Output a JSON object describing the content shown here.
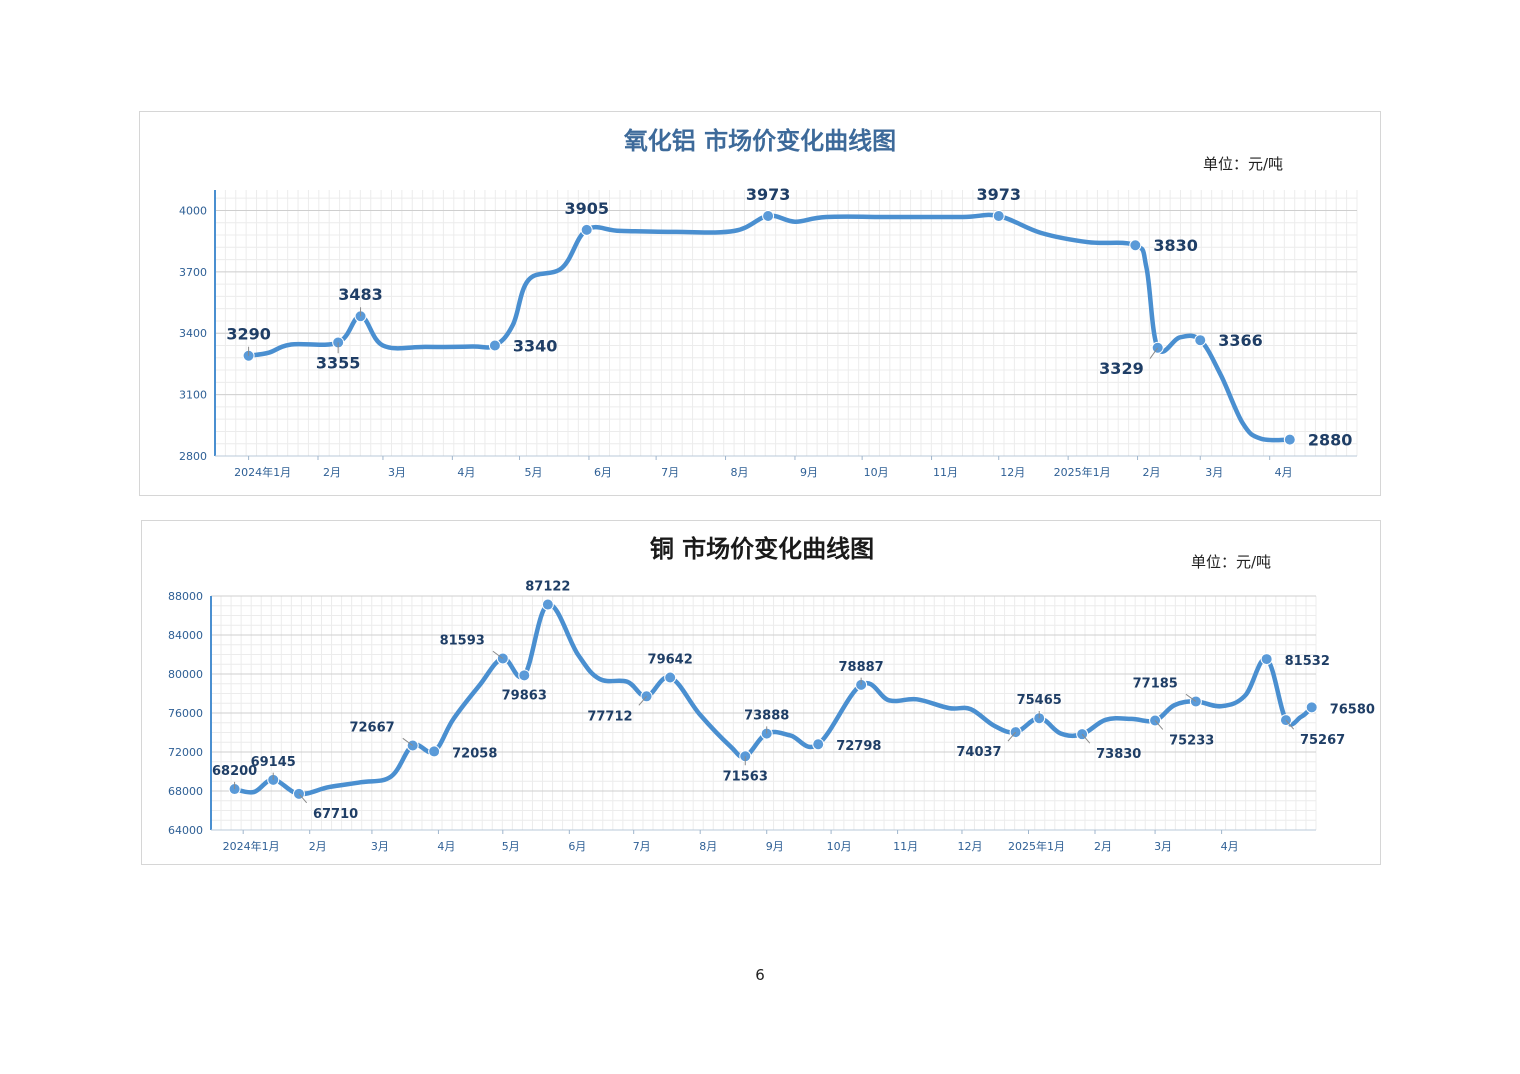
{
  "page": {
    "number": "6"
  },
  "colors": {
    "line": "#4a8fd0",
    "marker": "#5a9ad8",
    "label_dark": "#1f3e66",
    "title_blue": "#3d6a9a",
    "title_dark": "#1a1a1a",
    "axis": "#4a8fd0",
    "grid_major": "#cfcfcf",
    "grid_minor": "#ececec",
    "tick_text": "#2e5f95"
  },
  "chart_data": [
    {
      "type": "line",
      "title": "氧化铝  市场价变化曲线图",
      "unit": "单位：元/吨",
      "x_domain": [
        "2023-12-17",
        "2025-05-10"
      ],
      "ylim": [
        2800,
        4100
      ],
      "yticks": [
        2800,
        3100,
        3400,
        3700,
        4000
      ],
      "grid": true,
      "month_ticks": [
        {
          "date": "2024-01-01",
          "label": "2024年1月"
        },
        {
          "date": "2024-02-01",
          "label": "2月"
        },
        {
          "date": "2024-03-01",
          "label": "3月"
        },
        {
          "date": "2024-04-01",
          "label": "4月"
        },
        {
          "date": "2024-05-01",
          "label": "5月"
        },
        {
          "date": "2024-06-01",
          "label": "6月"
        },
        {
          "date": "2024-07-01",
          "label": "7月"
        },
        {
          "date": "2024-08-01",
          "label": "8月"
        },
        {
          "date": "2024-09-01",
          "label": "9月"
        },
        {
          "date": "2024-10-01",
          "label": "10月"
        },
        {
          "date": "2024-11-01",
          "label": "11月"
        },
        {
          "date": "2024-12-01",
          "label": "12月"
        },
        {
          "date": "2025-01-01",
          "label": "2025年1月"
        },
        {
          "date": "2025-02-01",
          "label": "2月"
        },
        {
          "date": "2025-03-01",
          "label": "3月"
        },
        {
          "date": "2025-04-01",
          "label": "4月"
        }
      ],
      "line_points": [
        [
          "2024-01-01",
          3290
        ],
        [
          "2024-01-10",
          3305
        ],
        [
          "2024-01-20",
          3345
        ],
        [
          "2024-02-10",
          3355
        ],
        [
          "2024-02-20",
          3483
        ],
        [
          "2024-03-01",
          3340
        ],
        [
          "2024-03-20",
          3333
        ],
        [
          "2024-04-10",
          3335
        ],
        [
          "2024-04-20",
          3340
        ],
        [
          "2024-04-28",
          3440
        ],
        [
          "2024-05-05",
          3660
        ],
        [
          "2024-05-20",
          3720
        ],
        [
          "2024-05-31",
          3905
        ],
        [
          "2024-06-15",
          3900
        ],
        [
          "2024-07-10",
          3895
        ],
        [
          "2024-08-05",
          3900
        ],
        [
          "2024-08-20",
          3973
        ],
        [
          "2024-09-01",
          3945
        ],
        [
          "2024-09-15",
          3968
        ],
        [
          "2024-10-15",
          3968
        ],
        [
          "2024-11-15",
          3968
        ],
        [
          "2024-12-01",
          3973
        ],
        [
          "2024-12-20",
          3890
        ],
        [
          "2025-01-10",
          3845
        ],
        [
          "2025-01-31",
          3830
        ],
        [
          "2025-02-05",
          3720
        ],
        [
          "2025-02-10",
          3329
        ],
        [
          "2025-02-20",
          3380
        ],
        [
          "2025-03-01",
          3366
        ],
        [
          "2025-03-10",
          3200
        ],
        [
          "2025-03-20",
          2960
        ],
        [
          "2025-03-28",
          2885
        ],
        [
          "2025-04-10",
          2880
        ]
      ],
      "labeled_points": [
        {
          "date": "2024-01-01",
          "value": 3290,
          "label": "3290",
          "anchor": "above",
          "callout": true
        },
        {
          "date": "2024-02-10",
          "value": 3355,
          "label": "3355",
          "anchor": "below",
          "callout": true
        },
        {
          "date": "2024-02-20",
          "value": 3483,
          "label": "3483",
          "anchor": "above",
          "callout": true
        },
        {
          "date": "2024-04-20",
          "value": 3340,
          "label": "3340",
          "anchor": "right",
          "callout": false
        },
        {
          "date": "2024-05-31",
          "value": 3905,
          "label": "3905",
          "anchor": "above",
          "callout": false
        },
        {
          "date": "2024-08-20",
          "value": 3973,
          "label": "3973",
          "anchor": "above",
          "callout": false
        },
        {
          "date": "2024-12-01",
          "value": 3973,
          "label": "3973",
          "anchor": "above",
          "callout": false
        },
        {
          "date": "2025-01-31",
          "value": 3830,
          "label": "3830",
          "anchor": "right",
          "callout": false
        },
        {
          "date": "2025-02-10",
          "value": 3329,
          "label": "3329",
          "anchor": "below-left",
          "callout": true
        },
        {
          "date": "2025-03-01",
          "value": 3366,
          "label": "3366",
          "anchor": "right",
          "callout": false
        },
        {
          "date": "2025-04-10",
          "value": 2880,
          "label": "2880",
          "anchor": "right",
          "callout": false
        }
      ]
    },
    {
      "type": "line",
      "title": "铜  市场价变化曲线图",
      "unit": "单位：元/吨",
      "x_domain": [
        "2023-12-17",
        "2025-05-15"
      ],
      "ylim": [
        64000,
        88000
      ],
      "yticks": [
        64000,
        68000,
        72000,
        76000,
        80000,
        84000,
        88000
      ],
      "grid": true,
      "month_ticks": [
        {
          "date": "2024-01-01",
          "label": "2024年1月"
        },
        {
          "date": "2024-02-01",
          "label": "2月"
        },
        {
          "date": "2024-03-01",
          "label": "3月"
        },
        {
          "date": "2024-04-01",
          "label": "4月"
        },
        {
          "date": "2024-05-01",
          "label": "5月"
        },
        {
          "date": "2024-06-01",
          "label": "6月"
        },
        {
          "date": "2024-07-01",
          "label": "7月"
        },
        {
          "date": "2024-08-01",
          "label": "8月"
        },
        {
          "date": "2024-09-01",
          "label": "9月"
        },
        {
          "date": "2024-10-01",
          "label": "10月"
        },
        {
          "date": "2024-11-01",
          "label": "11月"
        },
        {
          "date": "2024-12-01",
          "label": "12月"
        },
        {
          "date": "2025-01-01",
          "label": "2025年1月"
        },
        {
          "date": "2025-02-01",
          "label": "2月"
        },
        {
          "date": "2025-03-01",
          "label": "3月"
        },
        {
          "date": "2025-04-01",
          "label": "4月"
        }
      ],
      "line_points": [
        [
          "2023-12-28",
          68200
        ],
        [
          "2024-01-06",
          67900
        ],
        [
          "2024-01-15",
          69145
        ],
        [
          "2024-01-27",
          67710
        ],
        [
          "2024-02-10",
          68400
        ],
        [
          "2024-02-25",
          68900
        ],
        [
          "2024-03-10",
          69500
        ],
        [
          "2024-03-20",
          72667
        ],
        [
          "2024-03-30",
          72058
        ],
        [
          "2024-04-08",
          75400
        ],
        [
          "2024-04-20",
          78800
        ],
        [
          "2024-05-01",
          81593
        ],
        [
          "2024-05-11",
          79863
        ],
        [
          "2024-05-22",
          87122
        ],
        [
          "2024-06-05",
          82000
        ],
        [
          "2024-06-15",
          79500
        ],
        [
          "2024-06-28",
          79200
        ],
        [
          "2024-07-07",
          77712
        ],
        [
          "2024-07-18",
          79642
        ],
        [
          "2024-08-01",
          75800
        ],
        [
          "2024-08-15",
          72600
        ],
        [
          "2024-08-22",
          71563
        ],
        [
          "2024-09-01",
          73888
        ],
        [
          "2024-09-12",
          73700
        ],
        [
          "2024-09-25",
          72798
        ],
        [
          "2024-10-15",
          78887
        ],
        [
          "2024-10-28",
          77300
        ],
        [
          "2024-11-10",
          77400
        ],
        [
          "2024-11-25",
          76500
        ],
        [
          "2024-12-05",
          76400
        ],
        [
          "2024-12-16",
          74700
        ],
        [
          "2024-12-26",
          74037
        ],
        [
          "2025-01-06",
          75465
        ],
        [
          "2025-01-16",
          73900
        ],
        [
          "2025-01-26",
          73830
        ],
        [
          "2025-02-06",
          75300
        ],
        [
          "2025-02-18",
          75400
        ],
        [
          "2025-03-01",
          75233
        ],
        [
          "2025-03-10",
          76800
        ],
        [
          "2025-03-20",
          77185
        ],
        [
          "2025-04-01",
          76700
        ],
        [
          "2025-04-12",
          77800
        ],
        [
          "2025-04-22",
          81532
        ],
        [
          "2025-05-01",
          75267
        ],
        [
          "2025-05-08",
          75600
        ],
        [
          "2025-05-13",
          76580
        ]
      ],
      "labeled_points": [
        {
          "date": "2023-12-28",
          "value": 68200,
          "label": "68200",
          "anchor": "above",
          "callout": true
        },
        {
          "date": "2024-01-15",
          "value": 69145,
          "label": "69145",
          "anchor": "above",
          "callout": true
        },
        {
          "date": "2024-01-27",
          "value": 67710,
          "label": "67710",
          "anchor": "below-right",
          "callout": true
        },
        {
          "date": "2024-03-20",
          "value": 72667,
          "label": "72667",
          "anchor": "above-left",
          "callout": true
        },
        {
          "date": "2024-03-30",
          "value": 72058,
          "label": "72058",
          "anchor": "right",
          "callout": false
        },
        {
          "date": "2024-05-01",
          "value": 81593,
          "label": "81593",
          "anchor": "above-left",
          "callout": true
        },
        {
          "date": "2024-05-11",
          "value": 79863,
          "label": "79863",
          "anchor": "below",
          "callout": false
        },
        {
          "date": "2024-05-22",
          "value": 87122,
          "label": "87122",
          "anchor": "above",
          "callout": false
        },
        {
          "date": "2024-07-07",
          "value": 77712,
          "label": "77712",
          "anchor": "below-left",
          "callout": true
        },
        {
          "date": "2024-07-18",
          "value": 79642,
          "label": "79642",
          "anchor": "above",
          "callout": false
        },
        {
          "date": "2024-08-22",
          "value": 71563,
          "label": "71563",
          "anchor": "below",
          "callout": true
        },
        {
          "date": "2024-09-01",
          "value": 73888,
          "label": "73888",
          "anchor": "above",
          "callout": true
        },
        {
          "date": "2024-09-25",
          "value": 72798,
          "label": "72798",
          "anchor": "right",
          "callout": false
        },
        {
          "date": "2024-10-15",
          "value": 78887,
          "label": "78887",
          "anchor": "above",
          "callout": true
        },
        {
          "date": "2024-12-26",
          "value": 74037,
          "label": "74037",
          "anchor": "below-left",
          "callout": true
        },
        {
          "date": "2025-01-06",
          "value": 75465,
          "label": "75465",
          "anchor": "above",
          "callout": true
        },
        {
          "date": "2025-01-26",
          "value": 73830,
          "label": "73830",
          "anchor": "below-right",
          "callout": true
        },
        {
          "date": "2025-03-01",
          "value": 75233,
          "label": "75233",
          "anchor": "below-right",
          "callout": true
        },
        {
          "date": "2025-03-20",
          "value": 77185,
          "label": "77185",
          "anchor": "above-left",
          "callout": true
        },
        {
          "date": "2025-04-22",
          "value": 81532,
          "label": "81532",
          "anchor": "right",
          "callout": false
        },
        {
          "date": "2025-05-01",
          "value": 75267,
          "label": "75267",
          "anchor": "below-right",
          "callout": true
        },
        {
          "date": "2025-05-13",
          "value": 76580,
          "label": "76580",
          "anchor": "right",
          "callout": false
        }
      ]
    }
  ]
}
